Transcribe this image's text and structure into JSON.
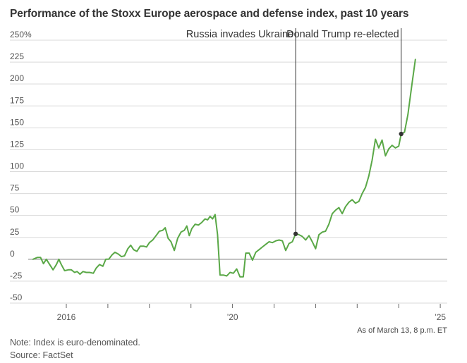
{
  "title": "Performance of the Stoxx Europe aerospace and defense index, past 10 years",
  "note": "Note: Index is euro-denominated.",
  "source": "Source: FactSet",
  "asof": "As of March 13, 8 p.m. ET",
  "colors": {
    "line": "#5aa847",
    "grid": "#d9d9d9",
    "zero": "#888888",
    "annotation": "#333333"
  },
  "chart_data": {
    "type": "line",
    "title": "Performance of the Stoxx Europe aerospace and defense index, past 10 years",
    "xlabel": "",
    "ylabel": "",
    "unit": "%",
    "ylim": [
      -50,
      250
    ],
    "xlim": [
      2015.2,
      2025.2
    ],
    "yticks": [
      250,
      225,
      200,
      175,
      150,
      125,
      100,
      75,
      50,
      25,
      0,
      -25,
      -50
    ],
    "ytick_labels": [
      "250%",
      "225",
      "200",
      "175",
      "150",
      "125",
      "100",
      "75",
      "50",
      "25",
      "0",
      "-25",
      "-50"
    ],
    "xticks": [
      {
        "value": 2016,
        "label": "2016"
      },
      {
        "value": 2017,
        "label": ""
      },
      {
        "value": 2018,
        "label": ""
      },
      {
        "value": 2019,
        "label": ""
      },
      {
        "value": 2020,
        "label": "’20"
      },
      {
        "value": 2021,
        "label": ""
      },
      {
        "value": 2022,
        "label": ""
      },
      {
        "value": 2023,
        "label": ""
      },
      {
        "value": 2024,
        "label": ""
      },
      {
        "value": 2025,
        "label": "’25"
      }
    ],
    "series": [
      {
        "name": "Stoxx Europe aerospace and defense index",
        "points": [
          [
            2015.2,
            0
          ],
          [
            2015.3,
            2
          ],
          [
            2015.38,
            2
          ],
          [
            2015.45,
            -5
          ],
          [
            2015.52,
            0
          ],
          [
            2015.6,
            -6
          ],
          [
            2015.68,
            -12
          ],
          [
            2015.76,
            -6
          ],
          [
            2015.82,
            0
          ],
          [
            2015.88,
            -6
          ],
          [
            2015.96,
            -13
          ],
          [
            2016.05,
            -12
          ],
          [
            2016.12,
            -12
          ],
          [
            2016.2,
            -15
          ],
          [
            2016.26,
            -14
          ],
          [
            2016.33,
            -17
          ],
          [
            2016.4,
            -14
          ],
          [
            2016.48,
            -15
          ],
          [
            2016.56,
            -15
          ],
          [
            2016.65,
            -16
          ],
          [
            2016.72,
            -10
          ],
          [
            2016.8,
            -6
          ],
          [
            2016.88,
            -8
          ],
          [
            2016.95,
            0
          ],
          [
            2017.02,
            0
          ],
          [
            2017.1,
            5
          ],
          [
            2017.17,
            8
          ],
          [
            2017.25,
            6
          ],
          [
            2017.33,
            3
          ],
          [
            2017.4,
            4
          ],
          [
            2017.48,
            12
          ],
          [
            2017.55,
            16
          ],
          [
            2017.62,
            11
          ],
          [
            2017.7,
            9
          ],
          [
            2017.78,
            15
          ],
          [
            2017.86,
            15
          ],
          [
            2017.93,
            14
          ],
          [
            2018.0,
            19
          ],
          [
            2018.08,
            22
          ],
          [
            2018.16,
            27
          ],
          [
            2018.24,
            32
          ],
          [
            2018.32,
            33
          ],
          [
            2018.38,
            36
          ],
          [
            2018.45,
            24
          ],
          [
            2018.52,
            20
          ],
          [
            2018.6,
            10
          ],
          [
            2018.68,
            24
          ],
          [
            2018.76,
            31
          ],
          [
            2018.84,
            33
          ],
          [
            2018.9,
            38
          ],
          [
            2018.96,
            27
          ],
          [
            2019.02,
            35
          ],
          [
            2019.1,
            40
          ],
          [
            2019.18,
            39
          ],
          [
            2019.26,
            42
          ],
          [
            2019.34,
            46
          ],
          [
            2019.4,
            45
          ],
          [
            2019.46,
            49
          ],
          [
            2019.52,
            46
          ],
          [
            2019.58,
            51
          ],
          [
            2019.64,
            28
          ],
          [
            2019.7,
            -18
          ],
          [
            2019.78,
            -18
          ],
          [
            2019.86,
            -19
          ],
          [
            2019.94,
            -15
          ],
          [
            2020.02,
            -16
          ],
          [
            2020.1,
            -11
          ],
          [
            2020.18,
            -20
          ],
          [
            2020.26,
            -20
          ],
          [
            2020.32,
            7
          ],
          [
            2020.4,
            7
          ],
          [
            2020.48,
            -1
          ],
          [
            2020.56,
            8
          ],
          [
            2020.64,
            11
          ],
          [
            2020.72,
            14
          ],
          [
            2020.8,
            17
          ],
          [
            2020.88,
            20
          ],
          [
            2020.96,
            19
          ],
          [
            2021.04,
            21
          ],
          [
            2021.12,
            22
          ],
          [
            2021.2,
            21
          ],
          [
            2021.28,
            10
          ],
          [
            2021.36,
            18
          ],
          [
            2021.44,
            20
          ],
          [
            2021.52,
            29
          ],
          [
            2021.6,
            28
          ],
          [
            2021.68,
            26
          ],
          [
            2021.76,
            22
          ],
          [
            2021.84,
            27
          ],
          [
            2021.92,
            20
          ],
          [
            2022.0,
            12
          ],
          [
            2022.08,
            28
          ],
          [
            2022.16,
            31
          ],
          [
            2022.24,
            32
          ],
          [
            2022.32,
            40
          ],
          [
            2022.4,
            52
          ],
          [
            2022.48,
            56
          ],
          [
            2022.56,
            59
          ],
          [
            2022.64,
            52
          ],
          [
            2022.72,
            60
          ],
          [
            2022.8,
            65
          ],
          [
            2022.88,
            68
          ],
          [
            2022.96,
            64
          ],
          [
            2023.04,
            66
          ],
          [
            2023.12,
            75
          ],
          [
            2023.2,
            82
          ],
          [
            2023.28,
            95
          ],
          [
            2023.36,
            113
          ],
          [
            2023.44,
            137
          ],
          [
            2023.52,
            127
          ],
          [
            2023.6,
            136
          ],
          [
            2023.68,
            118
          ],
          [
            2023.76,
            126
          ],
          [
            2023.84,
            130
          ],
          [
            2023.92,
            127
          ],
          [
            2024.0,
            129
          ],
          [
            2024.06,
            143
          ],
          [
            2024.14,
            145
          ],
          [
            2024.22,
            165
          ],
          [
            2024.32,
            200
          ],
          [
            2024.4,
            228
          ]
        ]
      }
    ],
    "annotations": [
      {
        "label": "Russia invades Ukraine",
        "x": 2021.52,
        "y": 29
      },
      {
        "label": "Donald Trump re-elected",
        "x": 2024.06,
        "y": 143
      }
    ]
  }
}
